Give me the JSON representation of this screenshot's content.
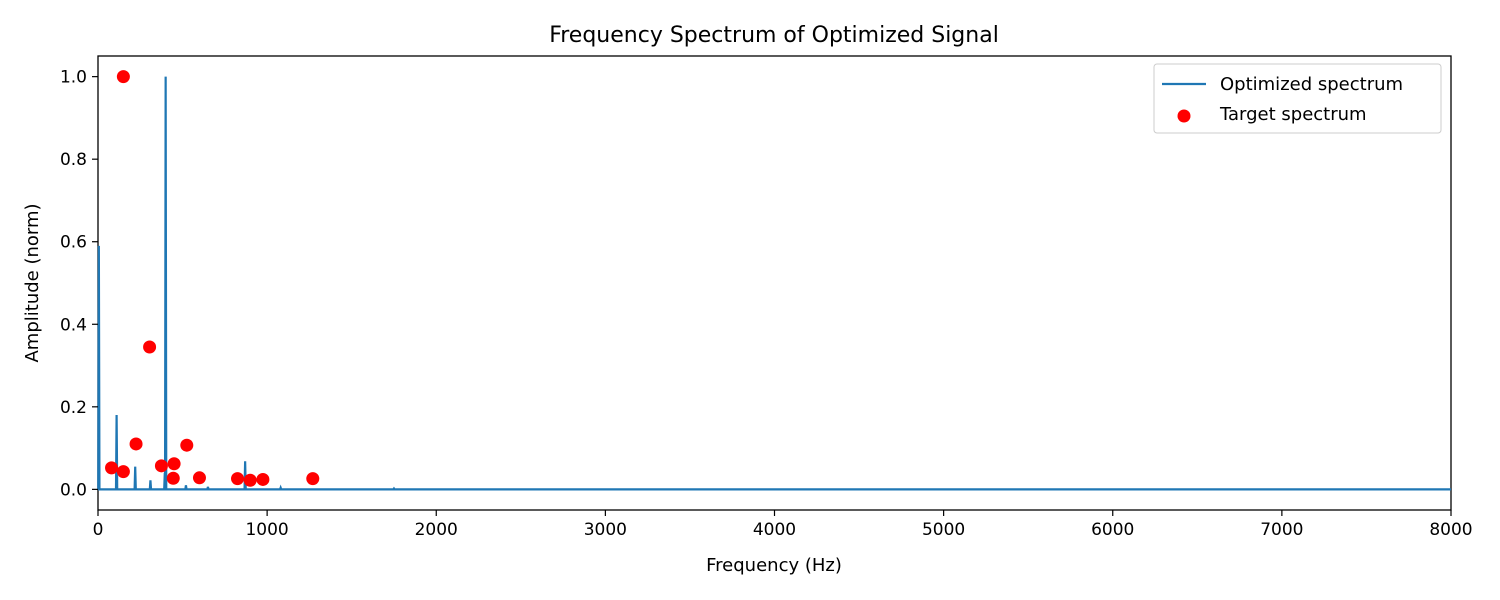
{
  "chart_data": {
    "type": "line",
    "title": "Frequency Spectrum of Optimized Signal",
    "xlabel": "Frequency (Hz)",
    "ylabel": "Amplitude (norm)",
    "xlim": [
      0,
      8000
    ],
    "ylim": [
      -0.05,
      1.05
    ],
    "xticks": [
      0,
      1000,
      2000,
      3000,
      4000,
      5000,
      6000,
      7000,
      8000
    ],
    "yticks": [
      0.0,
      0.2,
      0.4,
      0.6,
      0.8,
      1.0
    ],
    "xtick_labels": [
      "0",
      "1000",
      "2000",
      "3000",
      "4000",
      "5000",
      "6000",
      "7000",
      "8000"
    ],
    "ytick_labels": [
      "0.0",
      "0.2",
      "0.4",
      "0.6",
      "0.8",
      "1.0"
    ],
    "grid": false,
    "legend_position": "top-right",
    "series": [
      {
        "name": "Optimized spectrum",
        "kind": "line",
        "color": "#1f77b4",
        "peaks": [
          {
            "x": 5,
            "y": 0.59
          },
          {
            "x": 110,
            "y": 0.18
          },
          {
            "x": 220,
            "y": 0.055
          },
          {
            "x": 310,
            "y": 0.022
          },
          {
            "x": 395,
            "y": 0.04
          },
          {
            "x": 400,
            "y": 1.0
          },
          {
            "x": 520,
            "y": 0.01
          },
          {
            "x": 650,
            "y": 0.006
          },
          {
            "x": 870,
            "y": 0.068
          },
          {
            "x": 1080,
            "y": 0.004
          },
          {
            "x": 1750,
            "y": 0.002
          }
        ],
        "baseline": 0.0
      },
      {
        "name": "Target spectrum",
        "kind": "scatter",
        "color": "#ff0000",
        "points": [
          {
            "x": 80,
            "y": 0.052
          },
          {
            "x": 150,
            "y": 1.0
          },
          {
            "x": 150,
            "y": 0.043
          },
          {
            "x": 225,
            "y": 0.11
          },
          {
            "x": 305,
            "y": 0.345
          },
          {
            "x": 375,
            "y": 0.057
          },
          {
            "x": 445,
            "y": 0.027
          },
          {
            "x": 450,
            "y": 0.062
          },
          {
            "x": 525,
            "y": 0.107
          },
          {
            "x": 600,
            "y": 0.028
          },
          {
            "x": 825,
            "y": 0.026
          },
          {
            "x": 900,
            "y": 0.022
          },
          {
            "x": 975,
            "y": 0.024
          },
          {
            "x": 1270,
            "y": 0.026
          }
        ]
      }
    ]
  }
}
